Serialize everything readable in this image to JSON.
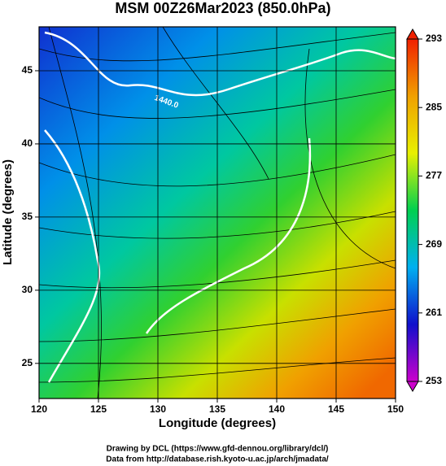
{
  "chart_data": {
    "type": "map",
    "title": "MSM 00Z26Mar2023 (850.0hPa)",
    "x_label": "Longitude (degrees)",
    "y_label": "Latitude  (degrees)",
    "xlim": [
      120,
      150
    ],
    "xticks": [
      120,
      125,
      130,
      135,
      140,
      145,
      150
    ],
    "ylim": [
      22.6,
      48
    ],
    "yticks": [
      25,
      30,
      35,
      40,
      45
    ],
    "grid": true,
    "colorbar": {
      "lim": [
        253,
        293
      ],
      "ticks": [
        253,
        261,
        269,
        277,
        285,
        293
      ],
      "colors": [
        "#cc00cc",
        "#1010cc",
        "#00b0f0",
        "#00d050",
        "#e8f000",
        "#f0a000",
        "#f02000"
      ]
    },
    "annotations": [
      "1440.0"
    ],
    "footer": [
      "Drawing by DCL (https://www.gfd-dennou.org/library/dcl/)",
      "Data from http://database.rish.kyoto-u.ac.jp/arch/jmadata/"
    ]
  }
}
